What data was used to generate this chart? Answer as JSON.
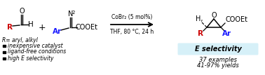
{
  "bg_color": "#ffffff",
  "red_color": "#cc0000",
  "blue_color": "#1a1aff",
  "black_color": "#000000",
  "highlight_color": "#d6f0f8",
  "conditions_line1": "CoBr₂ (5 mol%)",
  "conditions_line2": "THF, 80 °C, 24 h",
  "bullet_points": [
    "inexpensive catalyst",
    "ligand-free conditions",
    "high E selectivity"
  ],
  "right_text_highlight": "E selectivity",
  "right_text_line1": "37 examples",
  "right_text_line2": "41-97% yields",
  "r_label": "R= aryl, alkyl"
}
